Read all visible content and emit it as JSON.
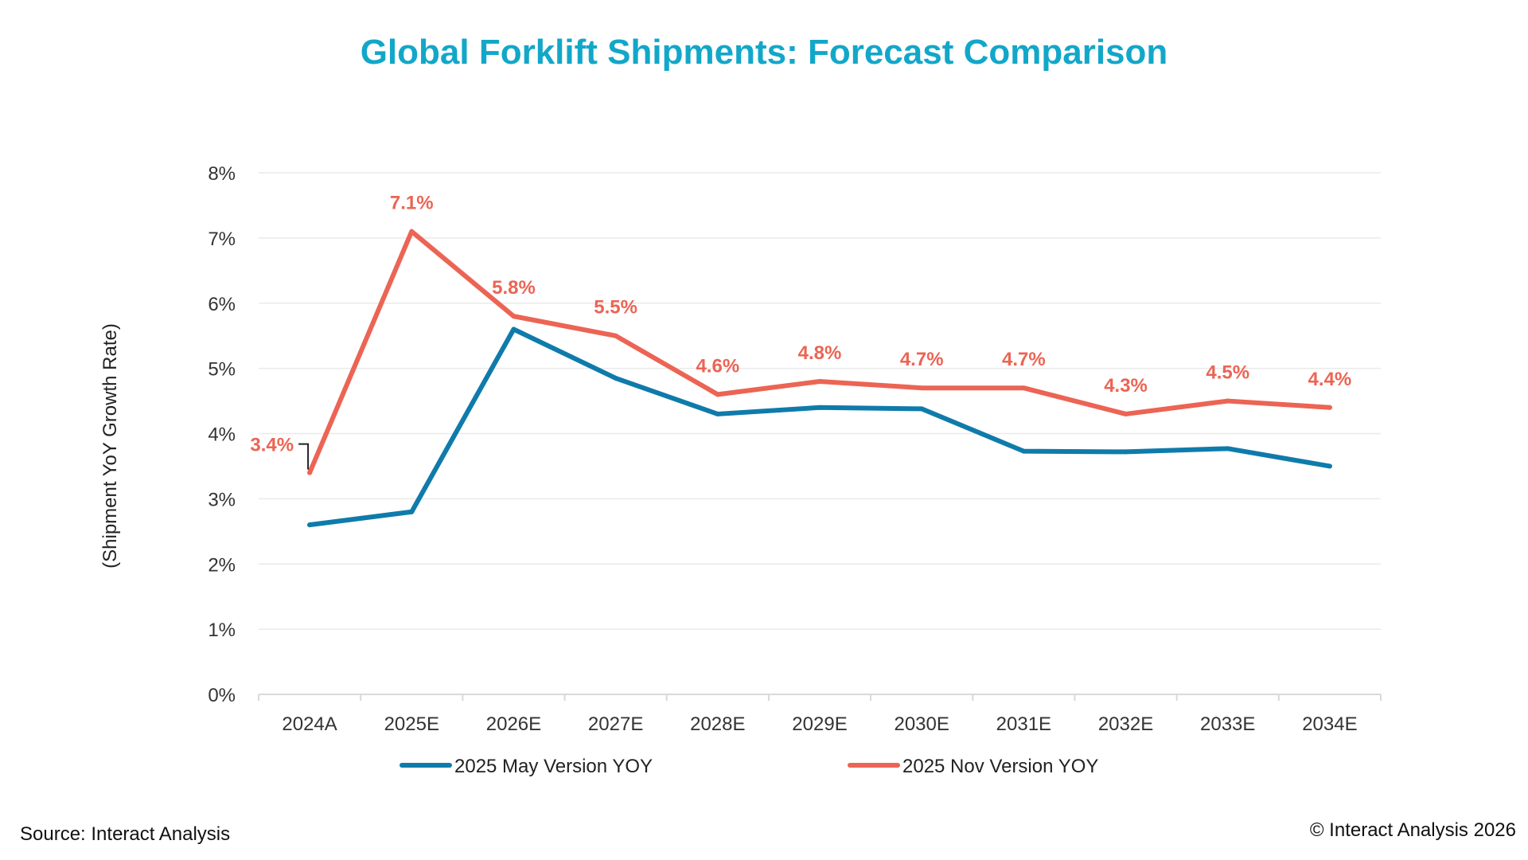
{
  "chart_data": {
    "type": "line",
    "title": "Global Forklift Shipments: Forecast Comparison",
    "xlabel": "",
    "ylabel": "(Shipment YoY Growth Rate)",
    "categories": [
      "2024A",
      "2025E",
      "2026E",
      "2027E",
      "2028E",
      "2029E",
      "2030E",
      "2031E",
      "2032E",
      "2033E",
      "2034E"
    ],
    "ylim": [
      0,
      8
    ],
    "yticks": [
      "0%",
      "1%",
      "2%",
      "3%",
      "4%",
      "5%",
      "6%",
      "7%",
      "8%"
    ],
    "grid": true,
    "legend_position": "bottom",
    "series": [
      {
        "name": "2025 May Version YOY",
        "color": "#0f7bab",
        "values": [
          2.6,
          2.8,
          5.6,
          4.85,
          4.3,
          4.4,
          4.38,
          3.73,
          3.72,
          3.77,
          3.5
        ],
        "data_labels": []
      },
      {
        "name": "2025 Nov Version YOY",
        "color": "#ec6454",
        "values": [
          3.4,
          7.1,
          5.8,
          5.5,
          4.6,
          4.8,
          4.7,
          4.7,
          4.3,
          4.5,
          4.4
        ],
        "data_labels": [
          "3.4%",
          "7.1%",
          "5.8%",
          "5.5%",
          "4.6%",
          "4.8%",
          "4.7%",
          "4.7%",
          "4.3%",
          "4.5%",
          "4.4%"
        ]
      }
    ],
    "colors": {
      "title": "#12a7c9",
      "axis_text": "#333333",
      "grid": "#eaeaea",
      "axis_line": "#d9d9d9"
    }
  },
  "footer": {
    "source": "Source: Interact Analysis",
    "copyright": "© Interact Analysis 2026"
  }
}
